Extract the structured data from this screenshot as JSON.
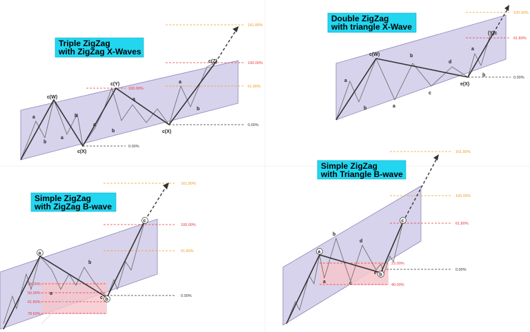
{
  "colors": {
    "channel_fill": "#c9c4e6",
    "channel_stroke": "#8a84b8",
    "title_bg": "#22d6f0",
    "orange": "#f39a1e",
    "red": "#e8363c",
    "black": "#333333",
    "pink_zone": "#f6c6cc"
  },
  "panels": {
    "triple": {
      "title": [
        "Triple ZigZag",
        "with ZigZag X-Waves"
      ],
      "labels": {
        "cW": "c(W)",
        "a1": "a",
        "b1": "b",
        "a2": "a",
        "b2": "b",
        "cX1": "c(X)",
        "cY": "c(Y)",
        "a3": "a",
        "b3": "b",
        "a4": "a",
        "cX2": "c(X)",
        "a5": "a",
        "b5": "b",
        "cZ": "c(Z)"
      },
      "levels": {
        "l161": "161.80%",
        "l100a": "100.00%",
        "l100b": "100.00%",
        "l618": "61.80%",
        "l0a": "0.00%",
        "l0b": "0.00%"
      }
    },
    "double": {
      "title": [
        "Double ZigZag",
        "with triangle X-Wave"
      ],
      "labels": {
        "a1": "a",
        "b1": "b",
        "cW": "c(W)",
        "a2": "a",
        "b2": "b",
        "c2": "c",
        "d2": "d",
        "eX": "e(X)",
        "a3": "a",
        "b3": "b",
        "Yc": "(Y)c"
      },
      "levels": {
        "l100": "100.00%",
        "l618": "61.80%",
        "l0": "0.00%"
      }
    },
    "simple_zz": {
      "title": [
        "Simple ZigZag",
        "with ZigZag B-wave"
      ],
      "labels": {
        "A": "a",
        "a1": "a",
        "B": "b",
        "C": "c",
        "cB": "c",
        "b_small": "b"
      },
      "levels": {
        "l161": "161.80%",
        "l100": "100.00%",
        "l618": "61.80%",
        "l382": "38.20%",
        "l50": "50.00%",
        "l618b": "61.80%",
        "l786": "78.60%",
        "l0": "0.00%"
      }
    },
    "simple_tri": {
      "title": [
        "Simple ZigZag",
        "with Triangle B-wave"
      ],
      "labels": {
        "A": "a",
        "a": "a",
        "b": "b",
        "c": "c",
        "d": "d",
        "e": "e",
        "B": "b",
        "C": "c"
      },
      "levels": {
        "l161": "161.80%",
        "l100": "100.00%",
        "l618": "61.80%",
        "l0": "0.00%",
        "l23": "23.00%",
        "l40": "40.00%"
      }
    }
  }
}
